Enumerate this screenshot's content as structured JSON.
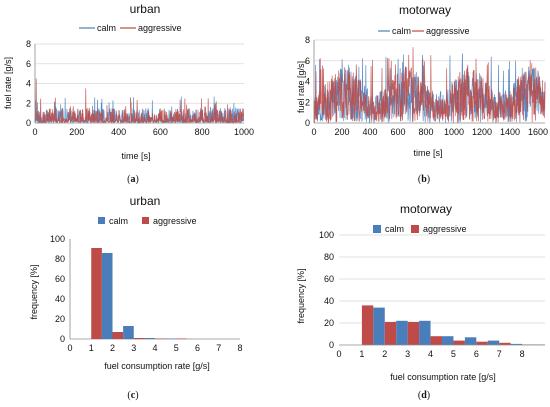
{
  "colors": {
    "calm": "#4a7ebb",
    "aggressive": "#be4b48"
  },
  "chart_data": [
    {
      "id": "a",
      "type": "line",
      "title": "urban",
      "caption_letter": "a",
      "xlabel": "time [s]",
      "ylabel": "fuel rate [g/s]",
      "xlim": [
        0,
        1000
      ],
      "ylim": [
        0,
        8
      ],
      "xticks": [
        "0",
        "200",
        "400",
        "600",
        "800",
        "1000"
      ],
      "yticks": [
        "0",
        "2",
        "4",
        "6",
        "8"
      ],
      "legend": {
        "placement": "top",
        "entries": [
          "calm",
          "aggressive"
        ]
      },
      "series": [
        {
          "name": "calm",
          "values_note": "dense time series",
          "typical": [
            0,
            1.5
          ],
          "peak": 3.1
        },
        {
          "name": "aggressive",
          "typical": [
            0,
            1.5
          ],
          "peak": 4.5
        }
      ]
    },
    {
      "id": "b",
      "type": "line",
      "title": "motorway",
      "caption_letter": "b",
      "xlabel": "time [s]",
      "ylabel": "fuel rate [g/s]",
      "xlim": [
        0,
        1650
      ],
      "ylim": [
        0,
        8
      ],
      "xticks": [
        "0",
        "200",
        "400",
        "600",
        "800",
        "1000",
        "1200",
        "1400",
        "1600"
      ],
      "yticks": [
        "0",
        "2",
        "4",
        "6",
        "8"
      ],
      "legend": {
        "placement": "top",
        "entries": [
          "calm",
          "aggressive"
        ]
      },
      "series": [
        {
          "name": "calm",
          "typical": [
            0,
            5.5
          ],
          "peak": 6.7
        },
        {
          "name": "aggressive",
          "typical": [
            0,
            5.5
          ],
          "peak": 7.3
        }
      ]
    },
    {
      "id": "c",
      "type": "bar",
      "title": "urban",
      "caption_letter": "c",
      "xlabel": "fuel consumption rate [g/s]",
      "ylabel": "frequency [%]",
      "xlim": [
        0,
        8
      ],
      "ylim": [
        0,
        100
      ],
      "xticks": [
        "0",
        "1",
        "2",
        "3",
        "4",
        "5",
        "6",
        "7",
        "8"
      ],
      "yticks": [
        "0",
        "20",
        "40",
        "60",
        "80",
        "100"
      ],
      "legend": {
        "placement": "top",
        "entries": [
          "calm",
          "aggressive"
        ]
      },
      "categories": [
        "1",
        "2",
        "3",
        "4",
        "5",
        "6",
        "7"
      ],
      "series": [
        {
          "name": "calm",
          "values": [
            86,
            13,
            1,
            0.5,
            0,
            0,
            0
          ]
        },
        {
          "name": "aggressive",
          "values": [
            91,
            7,
            1,
            0.5,
            0.5,
            0,
            0
          ]
        }
      ]
    },
    {
      "id": "d",
      "type": "bar",
      "title": "motorway",
      "caption_letter": "d",
      "xlabel": "fuel consumption rate [g/s]",
      "ylabel": "frequency [%]",
      "xlim": [
        0,
        9
      ],
      "ylim": [
        0,
        100
      ],
      "xticks": [
        "0",
        "1",
        "2",
        "3",
        "4",
        "5",
        "6",
        "7",
        "8"
      ],
      "yticks": [
        "0",
        "20",
        "40",
        "60",
        "80",
        "100"
      ],
      "legend": {
        "placement": "top",
        "entries": [
          "calm",
          "aggressive"
        ]
      },
      "categories": [
        "1",
        "2",
        "3",
        "4",
        "5",
        "6",
        "7",
        "8"
      ],
      "series": [
        {
          "name": "calm",
          "values": [
            34,
            22,
            22,
            8,
            7,
            4,
            1,
            0.5
          ]
        },
        {
          "name": "aggressive",
          "values": [
            36,
            21,
            21,
            8,
            4,
            3,
            2,
            0.5
          ]
        }
      ]
    }
  ]
}
